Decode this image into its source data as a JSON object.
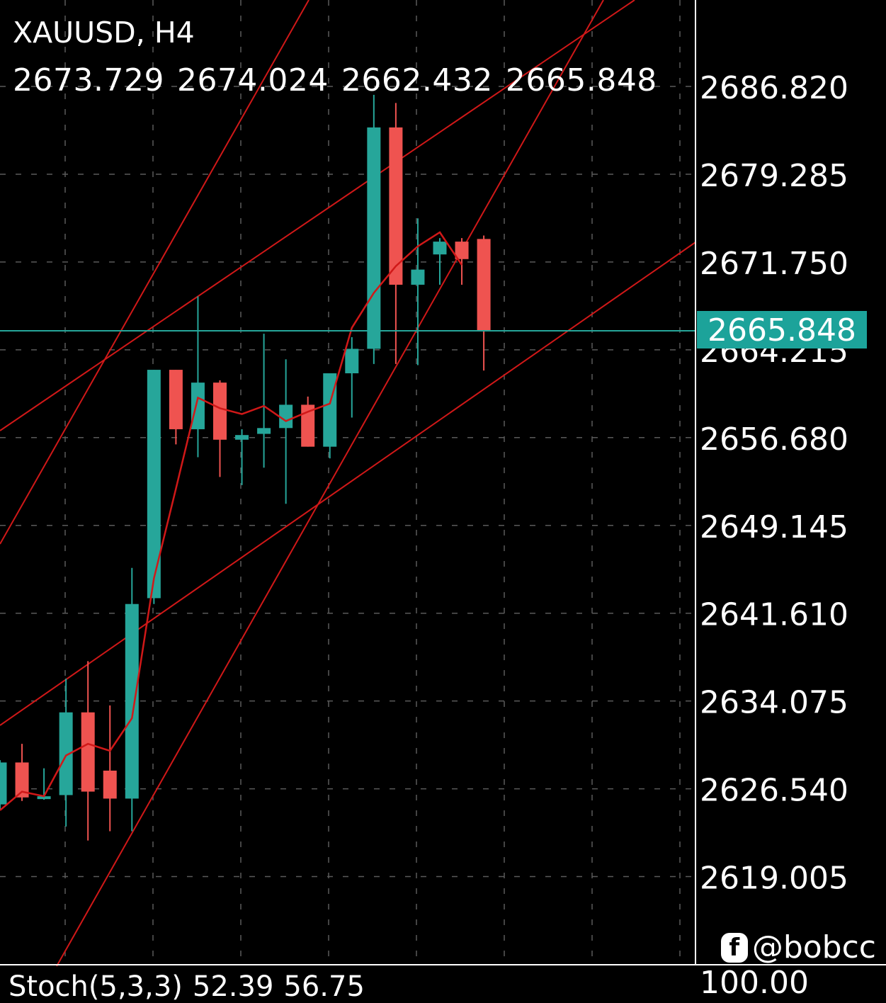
{
  "header": {
    "symbol": "XAUUSD, H4",
    "open": "2673.729",
    "high": "2674.024",
    "low": "2662.432",
    "close": "2665.848"
  },
  "watermark": {
    "icon": "facebook-icon",
    "handle": "@bobcc"
  },
  "stochastic": {
    "label": "Stoch(5,3,3)",
    "k": "52.39",
    "d": "56.75",
    "axis_max": "100.00"
  },
  "colors": {
    "background": "#000000",
    "bull": "#26a69a",
    "bear": "#ef5350",
    "trendline": "#d01818",
    "price_line": "#26a69a",
    "grid": "#5a5a5a"
  },
  "chart_data": {
    "type": "candlestick",
    "symbol": "XAUUSD",
    "timeframe": "H4",
    "y_ticks": [
      "2686.820",
      "2679.285",
      "2671.750",
      "2664.215",
      "2656.680",
      "2649.145",
      "2641.610",
      "2634.075",
      "2626.540",
      "2619.005"
    ],
    "ylim": [
      2611.0,
      2693.8
    ],
    "current_price": "2665.848",
    "grid": true,
    "candles": [
      {
        "o": 2625.2,
        "h": 2629.0,
        "l": 2624.7,
        "c": 2628.8
      },
      {
        "o": 2628.8,
        "h": 2630.4,
        "l": 2625.5,
        "c": 2625.8
      },
      {
        "o": 2625.8,
        "h": 2628.3,
        "l": 2625.6,
        "c": 2625.9
      },
      {
        "o": 2626.0,
        "h": 2636.0,
        "l": 2623.3,
        "c": 2633.1
      },
      {
        "o": 2633.1,
        "h": 2637.5,
        "l": 2622.1,
        "c": 2626.3
      },
      {
        "o": 2628.1,
        "h": 2633.7,
        "l": 2622.9,
        "c": 2625.7
      },
      {
        "o": 2625.7,
        "h": 2645.5,
        "l": 2622.9,
        "c": 2642.4
      },
      {
        "o": 2642.9,
        "h": 2662.2,
        "l": 2642.4,
        "c": 2662.5
      },
      {
        "o": 2662.5,
        "h": 2662.2,
        "l": 2656.1,
        "c": 2657.4
      },
      {
        "o": 2657.4,
        "h": 2668.8,
        "l": 2655.0,
        "c": 2661.4
      },
      {
        "o": 2661.4,
        "h": 2661.6,
        "l": 2653.3,
        "c": 2656.5
      },
      {
        "o": 2656.5,
        "h": 2657.4,
        "l": 2652.6,
        "c": 2656.9
      },
      {
        "o": 2657.0,
        "h": 2665.6,
        "l": 2654.1,
        "c": 2657.5
      },
      {
        "o": 2657.5,
        "h": 2663.4,
        "l": 2651.0,
        "c": 2659.5
      },
      {
        "o": 2659.5,
        "h": 2660.2,
        "l": 2656.0,
        "c": 2655.9
      },
      {
        "o": 2655.9,
        "h": 2662.2,
        "l": 2654.9,
        "c": 2662.2
      },
      {
        "o": 2662.2,
        "h": 2665.3,
        "l": 2658.4,
        "c": 2664.3
      },
      {
        "o": 2664.3,
        "h": 2686.1,
        "l": 2663.0,
        "c": 2683.3
      },
      {
        "o": 2683.3,
        "h": 2685.4,
        "l": 2663.0,
        "c": 2669.8
      },
      {
        "o": 2669.8,
        "h": 2675.5,
        "l": 2662.9,
        "c": 2671.1
      },
      {
        "o": 2672.4,
        "h": 2673.8,
        "l": 2669.8,
        "c": 2673.5
      },
      {
        "o": 2673.5,
        "h": 2673.8,
        "l": 2669.8,
        "c": 2672.0
      },
      {
        "o": 2673.729,
        "h": 2674.024,
        "l": 2662.432,
        "c": 2665.848
      }
    ],
    "moving_average": [
      2624.7,
      2626.3,
      2625.9,
      2629.4,
      2630.4,
      2629.8,
      2632.6,
      2644.6,
      2652.3,
      2660.1,
      2659.2,
      2658.7,
      2659.4,
      2658.1,
      2658.9,
      2659.6,
      2666.1,
      2669.1,
      2671.4,
      2673.1,
      2674.3,
      2671.5
    ]
  }
}
